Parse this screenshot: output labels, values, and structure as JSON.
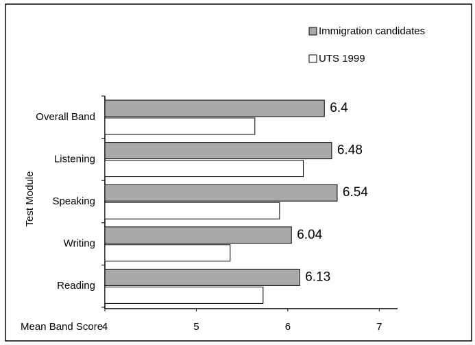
{
  "chart_data": {
    "type": "hbar",
    "xlabel": "Mean Band Score",
    "ylabel": "Test Module",
    "categories": [
      "Overall Band",
      "Listening",
      "Speaking",
      "Writing",
      "Reading"
    ],
    "series": [
      {
        "name": "Immigration candidates",
        "color": "#a9a9a9",
        "values": [
          6.4,
          6.48,
          6.54,
          6.04,
          6.13
        ]
      },
      {
        "name": "UTS 1999",
        "color": "#ffffff",
        "values": [
          5.64,
          6.17,
          5.91,
          5.37,
          5.73
        ]
      }
    ],
    "xlim": [
      4,
      7.2
    ],
    "xticks": [
      4,
      5,
      6,
      7
    ],
    "grid": false,
    "legend": "top-right"
  }
}
